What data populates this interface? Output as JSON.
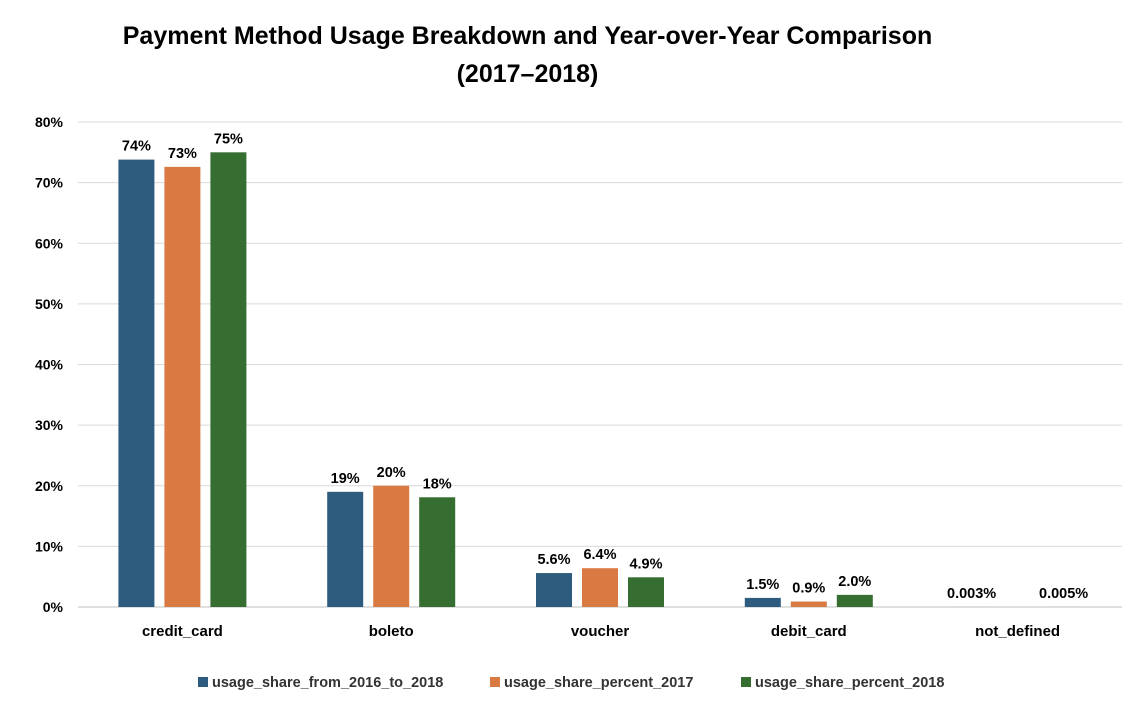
{
  "chart_data": {
    "type": "bar",
    "title": "Payment Method Usage Breakdown and Year-over-Year Comparison",
    "subtitle": "(2017–2018)",
    "categories": [
      "credit_card",
      "boleto",
      "voucher",
      "debit_card",
      "not_defined"
    ],
    "series": [
      {
        "name": "usage_share_from_2016_to_2018",
        "color": "#2e5c7e",
        "values": [
          0.738,
          0.19,
          0.056,
          0.015,
          3e-05
        ],
        "labels": [
          "74%",
          "19%",
          "5.6%",
          "1.5%",
          "0.003%"
        ]
      },
      {
        "name": "usage_share_percent_2017",
        "color": "#d97a43",
        "values": [
          0.726,
          0.2,
          0.064,
          0.009,
          0.0
        ],
        "labels": [
          "73%",
          "20%",
          "6.4%",
          "0.9%",
          ""
        ]
      },
      {
        "name": "usage_share_percent_2018",
        "color": "#366e31",
        "values": [
          0.75,
          0.181,
          0.049,
          0.02,
          5e-05
        ],
        "labels": [
          "75%",
          "18%",
          "4.9%",
          "2.0%",
          "0.005%"
        ]
      }
    ],
    "ylim": [
      0,
      0.8
    ],
    "yticks": [
      0,
      0.1,
      0.2,
      0.3,
      0.4,
      0.5,
      0.6,
      0.7,
      0.8
    ],
    "ytick_labels": [
      "0%",
      "10%",
      "20%",
      "30%",
      "40%",
      "50%",
      "60%",
      "70%",
      "80%"
    ],
    "xlabel": "",
    "ylabel": "",
    "grid": true,
    "legend_position": "bottom"
  }
}
